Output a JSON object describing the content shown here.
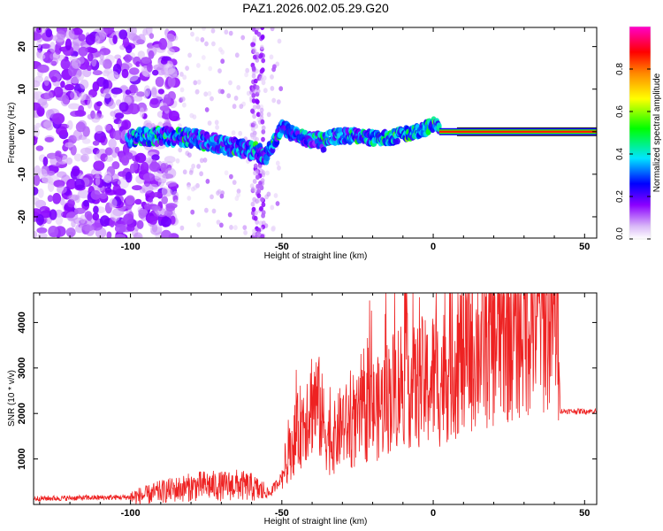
{
  "title": "PAZ1.2026.002.05.29.G20",
  "chart_data": [
    {
      "type": "heatmap",
      "xlabel": "Height of straight line (km)",
      "ylabel": "Frequency (Hz)",
      "xlim": [
        -132,
        54
      ],
      "ylim": [
        -25,
        24.5
      ],
      "xticks": [
        -100,
        -50,
        0,
        50
      ],
      "yticks": [
        -20,
        -10,
        0,
        10,
        20
      ],
      "xtick_labels": [
        "-100",
        "-50",
        "0",
        "50"
      ],
      "ytick_labels": [
        "-20",
        "-10",
        "0",
        "10",
        "20"
      ],
      "colorbar": {
        "label": "Normalized spectral amplitude",
        "range": [
          0,
          1
        ],
        "ticks": [
          0.0,
          0.2,
          0.4,
          0.6,
          0.8
        ],
        "tick_labels": [
          "0.0",
          "0.2",
          "0.4",
          "0.6",
          "0.8"
        ],
        "colors": [
          "#ffffff",
          "#d9b8f7",
          "#8b00ff",
          "#0000ff",
          "#00e5ff",
          "#00ff00",
          "#ffff00",
          "#ff8800",
          "#ff0000",
          "#ff00cc"
        ]
      },
      "ridge": {
        "description": "frequency centre of the dominant signal vs height",
        "x": [
          -100,
          -90,
          -80,
          -70,
          -60,
          -55,
          -50,
          -45,
          -40,
          -35,
          -30,
          -25,
          -20,
          -15,
          -10,
          -5,
          0,
          10,
          20,
          30,
          40,
          54
        ],
        "y": [
          -1.5,
          -1.0,
          -1.5,
          -3.0,
          -4.5,
          -5.5,
          1.0,
          -1.0,
          -2.0,
          -1.5,
          -1.0,
          -1.0,
          -1.5,
          -1.5,
          -0.5,
          0,
          1.5,
          0,
          0,
          0,
          0,
          0
        ]
      }
    },
    {
      "type": "line",
      "xlabel": "Height of straight line (km)",
      "ylabel": "SNR (10 * v/v)",
      "xlim": [
        -132,
        54
      ],
      "ylim": [
        0,
        4650
      ],
      "xticks": [
        -100,
        -50,
        0,
        50
      ],
      "yticks": [
        1000,
        2000,
        3000,
        4000
      ],
      "xtick_labels": [
        "-100",
        "-50",
        "0",
        "50"
      ],
      "ytick_labels": [
        "1000",
        "2000",
        "3000",
        "4000"
      ],
      "color": "#ee2222",
      "series": [
        {
          "name": "SNR",
          "x": [
            -132,
            -120,
            -110,
            -100,
            -95,
            -90,
            -85,
            -80,
            -75,
            -70,
            -65,
            -60,
            -57,
            -54,
            -50,
            -48,
            -46,
            -44,
            -42,
            -40,
            -38,
            -36,
            -34,
            -32,
            -30,
            -28,
            -26,
            -24,
            -22,
            -20,
            -18,
            -16,
            -14,
            -12,
            -10,
            -8,
            -6,
            -4,
            -2,
            0,
            2,
            4,
            6,
            8,
            10,
            15,
            20,
            25,
            30,
            35,
            40,
            41,
            42,
            45,
            54
          ],
          "y": [
            130,
            140,
            150,
            160,
            200,
            280,
            330,
            380,
            420,
            400,
            430,
            380,
            300,
            240,
            600,
            1000,
            1400,
            1700,
            2000,
            2300,
            2200,
            1700,
            1400,
            1500,
            1800,
            1700,
            1700,
            1900,
            2000,
            2100,
            2100,
            2300,
            2450,
            2600,
            2800,
            2700,
            2500,
            2700,
            2600,
            2800,
            2700,
            2900,
            3100,
            3200,
            3300,
            3500,
            3700,
            3900,
            4100,
            4250,
            4350,
            4400,
            2050,
            2050,
            2050
          ]
        }
      ]
    }
  ]
}
